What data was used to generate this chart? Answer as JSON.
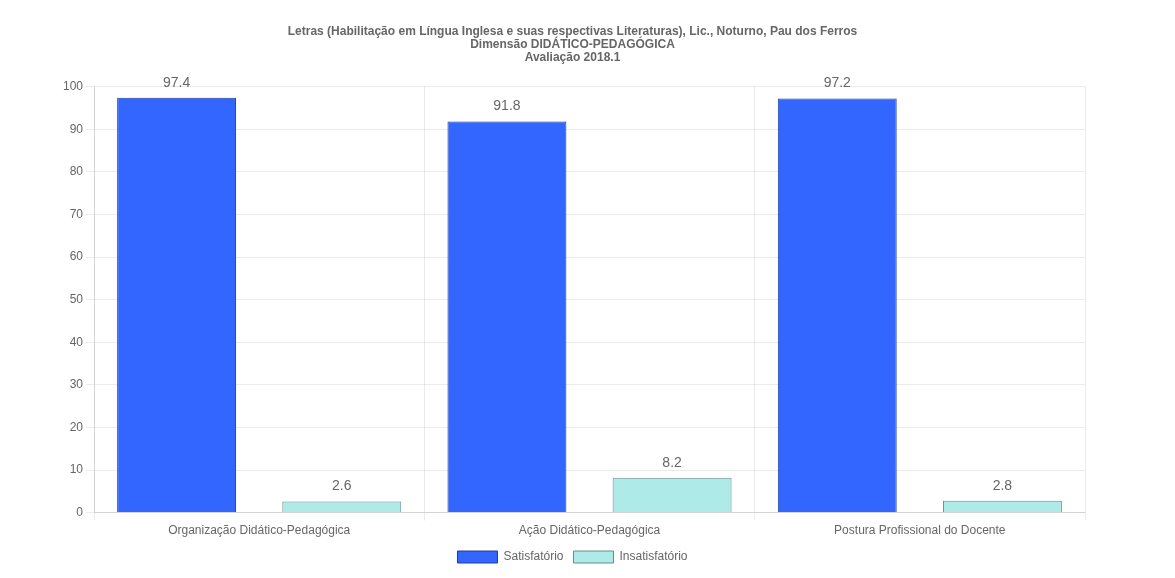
{
  "chart_data": {
    "type": "bar",
    "title": "Letras (Habilitação em Língua Inglesa e suas respectivas Literaturas), Lic., Noturno, Pau dos Ferros",
    "subtitle": "Dimensão DIDÁTICO-PEDAGÓGICA\nAvaliação 2018.1",
    "categories": [
      "Organização Didático-Pedagógica",
      "Ação Didático-Pedagógica",
      "Postura Profissional do Docente"
    ],
    "series": [
      {
        "name": "Satisfatório",
        "color": "#3366ff",
        "values": [
          97.4,
          91.8,
          97.2
        ]
      },
      {
        "name": "Insatisfatório",
        "color": "#aeeae7",
        "values": [
          2.6,
          8.2,
          2.8
        ]
      }
    ],
    "ylim": [
      0,
      100
    ],
    "yticks": [
      0,
      10,
      20,
      30,
      40,
      50,
      60,
      70,
      80,
      90,
      100
    ],
    "grid": true,
    "legend": "bottom",
    "data_labels": true
  }
}
